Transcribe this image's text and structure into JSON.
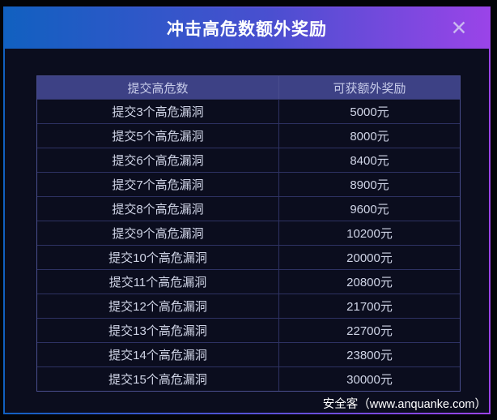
{
  "modal": {
    "title": "冲击高危数额外奖励",
    "close_icon": "✕",
    "colors": {
      "header_gradient_start": "#1160c0",
      "header_gradient_end": "#9a44e8",
      "body_background": "#0b0d1e",
      "table_header_background": "#3d4185",
      "table_border": "#2e3263",
      "row_text": "#d0d5e7"
    },
    "table": {
      "headers": [
        "提交高危数",
        "可获额外奖励"
      ],
      "rows": [
        {
          "count": "提交3个高危漏洞",
          "reward": "5000元"
        },
        {
          "count": "提交5个高危漏洞",
          "reward": "8000元"
        },
        {
          "count": "提交6个高危漏洞",
          "reward": "8400元"
        },
        {
          "count": "提交7个高危漏洞",
          "reward": "8900元"
        },
        {
          "count": "提交8个高危漏洞",
          "reward": "9600元"
        },
        {
          "count": "提交9个高危漏洞",
          "reward": "10200元"
        },
        {
          "count": "提交10个高危漏洞",
          "reward": "20000元"
        },
        {
          "count": "提交11个高危漏洞",
          "reward": "20800元"
        },
        {
          "count": "提交12个高危漏洞",
          "reward": "21700元"
        },
        {
          "count": "提交13个高危漏洞",
          "reward": "22700元"
        },
        {
          "count": "提交14个高危漏洞",
          "reward": "23800元"
        },
        {
          "count": "提交15个高危漏洞",
          "reward": "30000元"
        }
      ]
    }
  },
  "watermark": "安全客（www.anquanke.com）"
}
